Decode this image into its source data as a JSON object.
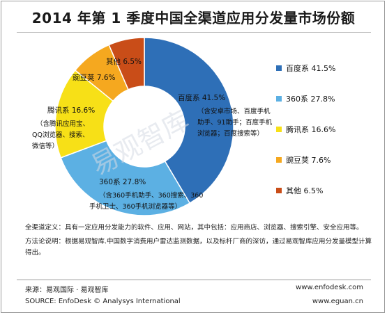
{
  "chart_data": {
    "type": "pie",
    "title": "2014 年第 1 季度中国全渠道应用分发量市场份额",
    "series": [
      {
        "name": "百度系",
        "value": 41.5,
        "value_label": "41.5%",
        "color": "#2e6fb7",
        "detail": [
          "（含安卓市场、百度手机",
          "助手、91助手；百度手机",
          "浏览器；百度搜索等）"
        ]
      },
      {
        "name": "360系",
        "value": 27.8,
        "value_label": "27.8%",
        "color": "#5cb0e3",
        "detail": [
          "（含360手机助手、360搜索、360",
          "手机卫士、360手机浏览器等）"
        ]
      },
      {
        "name": "腾讯系",
        "value": 16.6,
        "value_label": "16.6%",
        "color": "#f7e017",
        "detail": [
          "（含腾讯应用宝、",
          "QQ浏览器、搜索、",
          "微信等）"
        ]
      },
      {
        "name": "豌豆荚",
        "value": 7.6,
        "value_label": "7.6%",
        "color": "#f5a81f",
        "detail": []
      },
      {
        "name": "其他",
        "value": 6.5,
        "value_label": "6.5%",
        "color": "#c94d18",
        "detail": []
      }
    ],
    "legend_position": "right",
    "watermark": "易观智库"
  },
  "notes": {
    "definition": "全渠道定义：具有一定应用分发能力的软件、应用、网站，其中包括：应用商店、浏览器、搜索引擎、安全应用等。",
    "method": "方法论说明：根据易观智库.中国数字消费用户雷达监测数据，以及标杆厂商的深访，通过易观智库应用分发量模型计算得出。"
  },
  "source": {
    "cn": "来源：易观国际 · 易观智库",
    "en": "SOURCE: EnfoDesk © Analysys International",
    "url1": "www.enfodesk.com",
    "url2": "www.eguan.cn"
  }
}
